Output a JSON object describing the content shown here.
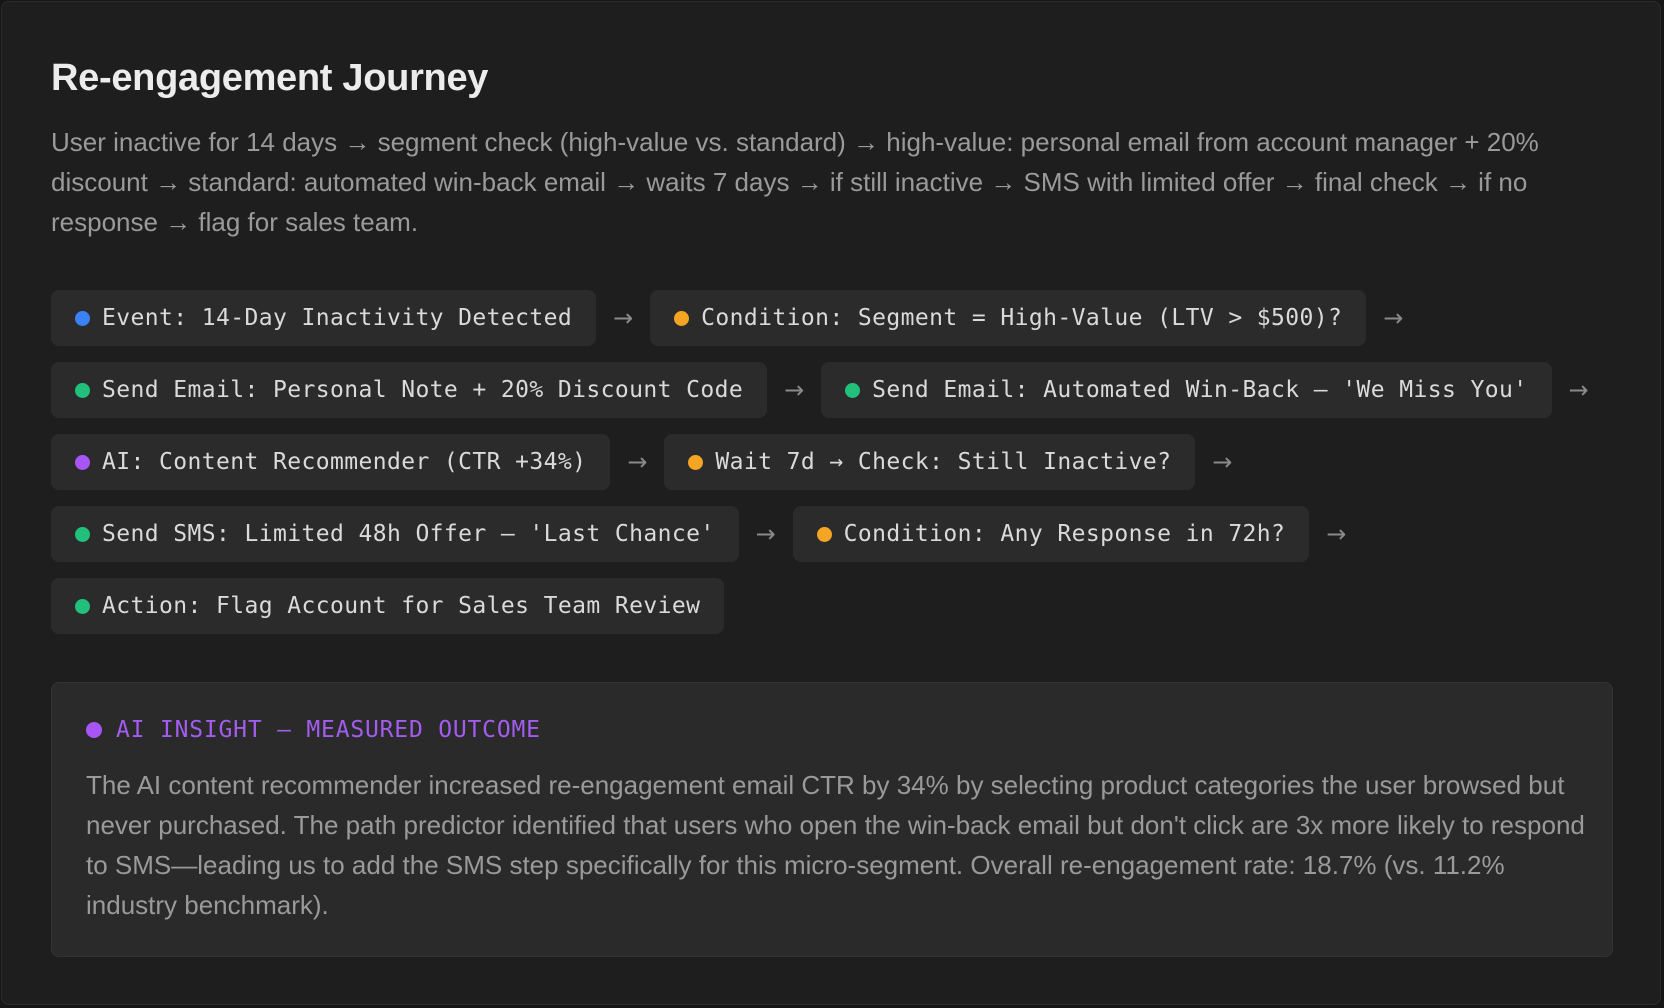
{
  "journey": {
    "title": "Re-engagement Journey",
    "description": "User inactive for 14 days → segment check (high-value vs. standard) → high-value: personal email from account manager + 20% discount → standard: automated win-back email → waits 7 days → if still inactive → SMS with limited offer → final check → if no response → flag for sales team."
  },
  "colors": {
    "event": "#3b82f6",
    "condition": "#f5a524",
    "action": "#22c07a",
    "ai": "#a855f7"
  },
  "nodes": [
    {
      "type": "event",
      "label": "Event: 14-Day Inactivity Detected"
    },
    {
      "type": "condition",
      "label": "Condition: Segment = High-Value (LTV > $500)?"
    },
    {
      "type": "action",
      "label": "Send Email: Personal Note + 20% Discount Code"
    },
    {
      "type": "action",
      "label": "Send Email: Automated Win-Back — 'We Miss You'"
    },
    {
      "type": "ai",
      "label": "AI: Content Recommender (CTR +34%)"
    },
    {
      "type": "condition",
      "label": "Wait 7d → Check: Still Inactive?"
    },
    {
      "type": "action",
      "label": "Send SMS: Limited 48h Offer — 'Last Chance'"
    },
    {
      "type": "condition",
      "label": "Condition: Any Response in 72h?"
    },
    {
      "type": "action",
      "label": "Action: Flag Account for Sales Team Review"
    }
  ],
  "arrow_glyph": "→",
  "insight": {
    "title": "AI INSIGHT — MEASURED OUTCOME",
    "body": "The AI content recommender increased re-engagement email CTR by 34% by selecting product categories the user browsed but never purchased. The path predictor identified that users who open the win-back email but don't click are 3x more likely to respond to SMS—leading us to add the SMS step specifically for this micro-segment. Overall re-engagement rate: 18.7% (vs. 11.2% industry benchmark)."
  }
}
